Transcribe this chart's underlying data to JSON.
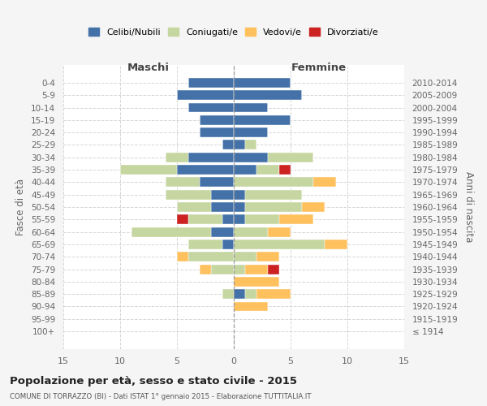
{
  "age_groups": [
    "100+",
    "95-99",
    "90-94",
    "85-89",
    "80-84",
    "75-79",
    "70-74",
    "65-69",
    "60-64",
    "55-59",
    "50-54",
    "45-49",
    "40-44",
    "35-39",
    "30-34",
    "25-29",
    "20-24",
    "15-19",
    "10-14",
    "5-9",
    "0-4"
  ],
  "birth_years": [
    "≤ 1914",
    "1915-1919",
    "1920-1924",
    "1925-1929",
    "1930-1934",
    "1935-1939",
    "1940-1944",
    "1945-1949",
    "1950-1954",
    "1955-1959",
    "1960-1964",
    "1965-1969",
    "1970-1974",
    "1975-1979",
    "1980-1984",
    "1985-1989",
    "1990-1994",
    "1995-1999",
    "2000-2004",
    "2005-2009",
    "2010-2014"
  ],
  "male": {
    "celibi": [
      0,
      0,
      0,
      0,
      0,
      0,
      0,
      1,
      2,
      1,
      2,
      2,
      3,
      5,
      4,
      1,
      3,
      3,
      4,
      5,
      4
    ],
    "coniugati": [
      0,
      0,
      0,
      1,
      0,
      2,
      4,
      3,
      7,
      3,
      3,
      4,
      3,
      5,
      2,
      0,
      0,
      0,
      0,
      0,
      0
    ],
    "vedovi": [
      0,
      0,
      0,
      0,
      0,
      1,
      1,
      0,
      0,
      0,
      0,
      0,
      0,
      0,
      0,
      0,
      0,
      0,
      0,
      0,
      0
    ],
    "divorziati": [
      0,
      0,
      0,
      0,
      0,
      0,
      0,
      0,
      0,
      1,
      0,
      0,
      0,
      0,
      0,
      0,
      0,
      0,
      0,
      0,
      0
    ]
  },
  "female": {
    "nubili": [
      0,
      0,
      0,
      1,
      0,
      0,
      0,
      0,
      0,
      1,
      1,
      1,
      0,
      2,
      3,
      1,
      3,
      5,
      3,
      6,
      5
    ],
    "coniugate": [
      0,
      0,
      0,
      1,
      0,
      1,
      2,
      8,
      3,
      3,
      5,
      5,
      7,
      2,
      4,
      1,
      0,
      0,
      0,
      0,
      0
    ],
    "vedove": [
      0,
      0,
      3,
      3,
      4,
      2,
      2,
      2,
      2,
      3,
      2,
      0,
      2,
      0,
      0,
      0,
      0,
      0,
      0,
      0,
      0
    ],
    "divorziate": [
      0,
      0,
      0,
      0,
      0,
      1,
      0,
      0,
      0,
      0,
      0,
      0,
      0,
      1,
      0,
      0,
      0,
      0,
      0,
      0,
      0
    ]
  },
  "colors": {
    "celibi": "#4472a8",
    "coniugati": "#c5d6a0",
    "vedovi": "#ffc05e",
    "divorziati": "#cc2222"
  },
  "legend_labels": [
    "Celibi/Nubili",
    "Coniugati/e",
    "Vedovi/e",
    "Divorziati/e"
  ],
  "title": "Popolazione per età, sesso e stato civile - 2015",
  "subtitle": "COMUNE DI TORRAZZO (BI) - Dati ISTAT 1° gennaio 2015 - Elaborazione TUTTITALIA.IT",
  "xlabel_left": "Maschi",
  "xlabel_right": "Femmine",
  "ylabel_left": "Fasce di età",
  "ylabel_right": "Anni di nascita",
  "xlim": 15,
  "bg_color": "#f5f5f5",
  "plot_bg_color": "#ffffff",
  "grid_color": "#cccccc"
}
